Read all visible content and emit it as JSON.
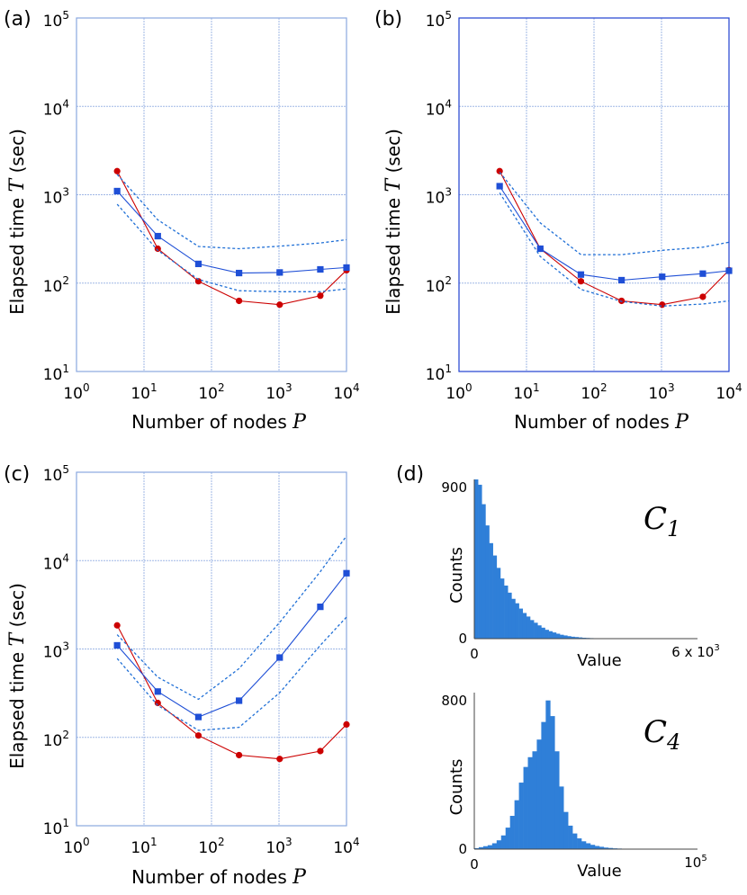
{
  "figure": {
    "panels": [
      {
        "id": "a",
        "label": "(a)"
      },
      {
        "id": "b",
        "label": "(b)"
      },
      {
        "id": "c",
        "label": "(c)"
      },
      {
        "id": "d",
        "label": "(d)"
      }
    ]
  },
  "chart_data": [
    {
      "type": "line",
      "panel": "(a)",
      "xscale": "log",
      "yscale": "log",
      "xlabel": "Number of nodes",
      "xlabel_var": "P",
      "ylabel": "Elapsed time",
      "ylabel_var": "T",
      "ylabel_unit": "(sec)",
      "xlim": [
        1,
        10000
      ],
      "ylim": [
        10,
        100000
      ],
      "xticks": [
        "10^0",
        "10^1",
        "10^2",
        "10^3",
        "10^4"
      ],
      "yticks": [
        "10^1",
        "10^2",
        "10^3",
        "10^4",
        "10^5"
      ],
      "grid": true,
      "series": [
        {
          "name": "red",
          "color": "#cc0000",
          "marker": "circle",
          "x": [
            4,
            16,
            64,
            256,
            1024,
            4096,
            10000
          ],
          "y": [
            1850,
            245,
            105,
            63,
            57,
            72,
            140
          ]
        },
        {
          "name": "blue",
          "color": "#1f4fd6",
          "marker": "square",
          "x": [
            4,
            16,
            64,
            256,
            1024,
            4096,
            10000
          ],
          "y": [
            1100,
            340,
            165,
            130,
            132,
            143,
            150
          ]
        },
        {
          "name": "blue-upper",
          "color": "#1f6fd6",
          "style": "dashed",
          "x": [
            4,
            16,
            64,
            256,
            1024,
            4096,
            10000
          ],
          "y": [
            1700,
            520,
            260,
            245,
            262,
            285,
            310
          ]
        },
        {
          "name": "blue-lower",
          "color": "#1f6fd6",
          "style": "dashed",
          "x": [
            4,
            16,
            64,
            256,
            1024,
            4096,
            10000
          ],
          "y": [
            780,
            235,
            110,
            82,
            80,
            80,
            86
          ]
        }
      ]
    },
    {
      "type": "line",
      "panel": "(b)",
      "xscale": "log",
      "yscale": "log",
      "xlabel": "Number of nodes",
      "xlabel_var": "P",
      "ylabel": "Elapsed time",
      "ylabel_var": "T",
      "ylabel_unit": "(sec)",
      "xlim": [
        1,
        10000
      ],
      "ylim": [
        10,
        100000
      ],
      "xticks": [
        "10^0",
        "10^1",
        "10^2",
        "10^3",
        "10^4"
      ],
      "yticks": [
        "10^1",
        "10^2",
        "10^3",
        "10^4",
        "10^5"
      ],
      "grid": true,
      "series": [
        {
          "name": "red",
          "color": "#cc0000",
          "marker": "circle",
          "x": [
            4,
            16,
            64,
            256,
            1024,
            4096,
            10000
          ],
          "y": [
            1850,
            245,
            105,
            63,
            57,
            70,
            140
          ]
        },
        {
          "name": "blue",
          "color": "#1f4fd6",
          "marker": "square",
          "x": [
            4,
            16,
            64,
            256,
            1024,
            4096,
            10000
          ],
          "y": [
            1250,
            245,
            125,
            108,
            118,
            128,
            138
          ]
        },
        {
          "name": "blue-upper",
          "color": "#1f6fd6",
          "style": "dashed",
          "x": [
            4,
            16,
            64,
            256,
            1024,
            4096,
            10000
          ],
          "y": [
            1800,
            480,
            210,
            210,
            235,
            255,
            290
          ]
        },
        {
          "name": "blue-lower",
          "color": "#1f6fd6",
          "style": "dashed",
          "x": [
            4,
            16,
            64,
            256,
            1024,
            4096,
            10000
          ],
          "y": [
            1050,
            200,
            85,
            62,
            55,
            58,
            63
          ]
        }
      ]
    },
    {
      "type": "line",
      "panel": "(c)",
      "xscale": "log",
      "yscale": "log",
      "xlabel": "Number of nodes",
      "xlabel_var": "P",
      "ylabel": "Elapsed time",
      "ylabel_var": "T",
      "ylabel_unit": "(sec)",
      "xlim": [
        1,
        10000
      ],
      "ylim": [
        10,
        100000
      ],
      "xticks": [
        "10^0",
        "10^1",
        "10^2",
        "10^3",
        "10^4"
      ],
      "yticks": [
        "10^1",
        "10^2",
        "10^3",
        "10^4",
        "10^5"
      ],
      "grid": true,
      "series": [
        {
          "name": "red",
          "color": "#cc0000",
          "marker": "circle",
          "x": [
            4,
            16,
            64,
            256,
            1024,
            4096,
            10000
          ],
          "y": [
            1850,
            245,
            105,
            63,
            57,
            70,
            140
          ]
        },
        {
          "name": "blue",
          "color": "#1f4fd6",
          "marker": "square",
          "x": [
            4,
            16,
            64,
            256,
            1024,
            4096,
            10000
          ],
          "y": [
            1100,
            330,
            170,
            260,
            800,
            3000,
            7200
          ]
        },
        {
          "name": "blue-upper",
          "color": "#1f6fd6",
          "style": "dashed",
          "x": [
            4,
            16,
            64,
            256,
            1024,
            4096,
            10000
          ],
          "y": [
            1450,
            480,
            270,
            600,
            2000,
            7500,
            19000
          ]
        },
        {
          "name": "blue-lower",
          "color": "#1f6fd6",
          "style": "dashed",
          "x": [
            4,
            16,
            64,
            256,
            1024,
            4096,
            10000
          ],
          "y": [
            780,
            230,
            120,
            130,
            320,
            1100,
            2300
          ]
        }
      ]
    },
    {
      "type": "bar",
      "subtype": "histogram",
      "panel": "(d)",
      "name": "C",
      "subscript": "1",
      "xlabel": "Value",
      "ylabel": "Counts",
      "x_min_label": "0",
      "x_max_label": "6 x 10",
      "x_max_exp": "3",
      "y_min_label": "0",
      "y_max_label": "900",
      "xlim": [
        0,
        6000
      ],
      "ylim": [
        0,
        900
      ],
      "color": "#2f7fd8",
      "bin_width": 100,
      "values": [
        900,
        870,
        760,
        640,
        540,
        470,
        400,
        340,
        300,
        260,
        225,
        200,
        170,
        145,
        125,
        105,
        90,
        75,
        62,
        50,
        42,
        35,
        28,
        22,
        18,
        14,
        11,
        9,
        7,
        5,
        4,
        3,
        2,
        2,
        1,
        1
      ]
    },
    {
      "type": "bar",
      "subtype": "histogram",
      "panel": "(d)",
      "name": "C",
      "subscript": "4",
      "xlabel": "Value",
      "ylabel": "Counts",
      "x_min_label": "0",
      "x_max_label": "10",
      "x_max_exp": "5",
      "y_min_label": "0",
      "y_max_label": "800",
      "xlim": [
        0,
        100000
      ],
      "ylim": [
        0,
        800
      ],
      "color": "#2f7fd8",
      "bin_width": 2000,
      "values": [
        5,
        10,
        15,
        20,
        30,
        45,
        70,
        110,
        170,
        250,
        340,
        420,
        470,
        500,
        560,
        650,
        760,
        680,
        500,
        320,
        190,
        120,
        80,
        55,
        40,
        30,
        22,
        16,
        12,
        8,
        6,
        4,
        3,
        2
      ]
    }
  ]
}
